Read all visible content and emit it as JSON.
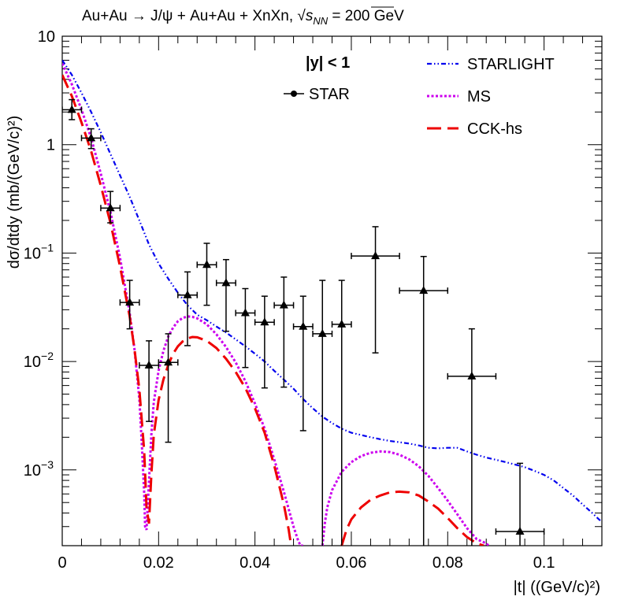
{
  "chart_data": {
    "type": "scatter",
    "title": "Au+Au → J/ψ + Au+Au + XnXn, √s_NN = 200 GeV",
    "title_main": "Au+Au → J/ψ + Au+Au + XnXn, ",
    "title_sqrt": "√",
    "title_s": "s",
    "title_sub": "NN",
    "title_tail": " = 200 GeV",
    "rapidity_label": "|y| < 1",
    "xlabel": "|t| ((GeV/c)²)",
    "ylabel": "dσ/dtdy (mb/(GeV/c)²)",
    "xlim": [
      0,
      0.112
    ],
    "ylim": [
      0.0002,
      10
    ],
    "yscale": "log",
    "x_ticks": [
      {
        "value": 0,
        "label": "0"
      },
      {
        "value": 0.02,
        "label": "0.02"
      },
      {
        "value": 0.04,
        "label": "0.04"
      },
      {
        "value": 0.06,
        "label": "0.06"
      },
      {
        "value": 0.08,
        "label": "0.08"
      },
      {
        "value": 0.1,
        "label": "0.1"
      }
    ],
    "y_ticks": [
      {
        "value": 10,
        "base": "10",
        "exp": ""
      },
      {
        "value": 1,
        "base": "1",
        "exp": ""
      },
      {
        "value": 0.1,
        "base": "10",
        "exp": "−1"
      },
      {
        "value": 0.01,
        "base": "10",
        "exp": "−2"
      },
      {
        "value": 0.001,
        "base": "10",
        "exp": "−3"
      }
    ],
    "legend": [
      {
        "key": "star",
        "label": "STAR"
      },
      {
        "key": "starlight",
        "label": "STARLIGHT"
      },
      {
        "key": "ms",
        "label": "MS"
      },
      {
        "key": "cck",
        "label": "CCK-hs"
      }
    ],
    "colors": {
      "starlight": "#0000ee",
      "ms": "#cc00ee",
      "cck": "#ee0000",
      "star": "#000000"
    },
    "star": [
      {
        "x": 0.002,
        "y": 2.1,
        "xerr": 0.002,
        "ylo": 1.7,
        "yhi": 2.6
      },
      {
        "x": 0.006,
        "y": 1.15,
        "xerr": 0.002,
        "ylo": 0.92,
        "yhi": 1.4
      },
      {
        "x": 0.01,
        "y": 0.26,
        "xerr": 0.002,
        "ylo": 0.19,
        "yhi": 0.37
      },
      {
        "x": 0.014,
        "y": 0.035,
        "xerr": 0.002,
        "ylo": 0.02,
        "yhi": 0.056
      },
      {
        "x": 0.018,
        "y": 0.0092,
        "xerr": 0.002,
        "ylo": 0.0028,
        "yhi": 0.0155
      },
      {
        "x": 0.022,
        "y": 0.0098,
        "xerr": 0.002,
        "ylo": 0.0018,
        "yhi": 0.018
      },
      {
        "x": 0.026,
        "y": 0.041,
        "xerr": 0.002,
        "ylo": 0.014,
        "yhi": 0.067
      },
      {
        "x": 0.03,
        "y": 0.078,
        "xerr": 0.002,
        "ylo": 0.033,
        "yhi": 0.123
      },
      {
        "x": 0.034,
        "y": 0.053,
        "xerr": 0.002,
        "ylo": 0.019,
        "yhi": 0.087
      },
      {
        "x": 0.038,
        "y": 0.028,
        "xerr": 0.002,
        "ylo": 0.0088,
        "yhi": 0.047
      },
      {
        "x": 0.042,
        "y": 0.023,
        "xerr": 0.002,
        "ylo": 0.0057,
        "yhi": 0.04
      },
      {
        "x": 0.046,
        "y": 0.033,
        "xerr": 0.002,
        "ylo": 0.0058,
        "yhi": 0.06
      },
      {
        "x": 0.05,
        "y": 0.021,
        "xerr": 0.002,
        "ylo": 0.0023,
        "yhi": 0.04
      },
      {
        "x": 0.054,
        "y": 0.018,
        "xerr": 0.002,
        "ylo": 0.0002,
        "yhi": 0.056
      },
      {
        "x": 0.058,
        "y": 0.022,
        "xerr": 0.002,
        "ylo": 0.0002,
        "yhi": 0.056
      },
      {
        "x": 0.065,
        "y": 0.094,
        "xerr": 0.005,
        "ylo": 0.012,
        "yhi": 0.175
      },
      {
        "x": 0.075,
        "y": 0.045,
        "xerr": 0.005,
        "ylo": 0.0002,
        "yhi": 0.093
      },
      {
        "x": 0.085,
        "y": 0.0073,
        "xerr": 0.005,
        "ylo": 0.0002,
        "yhi": 0.02
      },
      {
        "x": 0.095,
        "y": 0.00027,
        "xerr": 0.005,
        "ylo": 0.0002,
        "yhi": 0.00115
      }
    ],
    "starlight": {
      "x": [
        0,
        0.002,
        0.004,
        0.006,
        0.008,
        0.01,
        0.012,
        0.014,
        0.016,
        0.018,
        0.02,
        0.022,
        0.024,
        0.026,
        0.028,
        0.03,
        0.032,
        0.034,
        0.036,
        0.038,
        0.04,
        0.042,
        0.044,
        0.046,
        0.048,
        0.05,
        0.052,
        0.054,
        0.056,
        0.058,
        0.06,
        0.062,
        0.064,
        0.066,
        0.068,
        0.07,
        0.072,
        0.074,
        0.076,
        0.078,
        0.08,
        0.082,
        0.084,
        0.086,
        0.088,
        0.09,
        0.092,
        0.094,
        0.096,
        0.098,
        0.1,
        0.102,
        0.104,
        0.106,
        0.108,
        0.11,
        0.112
      ],
      "y": [
        6.0,
        4.4,
        3.0,
        2.0,
        1.3,
        0.82,
        0.52,
        0.33,
        0.2,
        0.12,
        0.08,
        0.058,
        0.043,
        0.033,
        0.027,
        0.024,
        0.021,
        0.0185,
        0.016,
        0.0138,
        0.0118,
        0.01,
        0.0082,
        0.0068,
        0.0056,
        0.0045,
        0.0037,
        0.0031,
        0.0027,
        0.0024,
        0.0022,
        0.0021,
        0.002,
        0.00192,
        0.00185,
        0.0018,
        0.00175,
        0.00168,
        0.0016,
        0.00158,
        0.0016,
        0.0016,
        0.00148,
        0.00138,
        0.0013,
        0.00124,
        0.00118,
        0.00112,
        0.00106,
        0.00098,
        0.0009,
        0.0008,
        0.00068,
        0.00058,
        0.00048,
        0.0004,
        0.00033
      ]
    },
    "ms": {
      "x": [
        0,
        0.002,
        0.004,
        0.006,
        0.008,
        0.01,
        0.012,
        0.014,
        0.015,
        0.016,
        0.0165,
        0.017,
        0.0172,
        0.0175,
        0.018,
        0.0185,
        0.019,
        0.02,
        0.021,
        0.022,
        0.023,
        0.024,
        0.025,
        0.026,
        0.027,
        0.028,
        0.03,
        0.032,
        0.034,
        0.036,
        0.038,
        0.04,
        0.042,
        0.044,
        0.046,
        0.048,
        0.049,
        0.0495,
        0.05,
        null,
        0.054,
        0.0545,
        0.055,
        0.056,
        0.058,
        0.06,
        0.062,
        0.064,
        0.066,
        0.068,
        0.07,
        0.072,
        0.074,
        0.076,
        0.078,
        0.08,
        0.082,
        0.084,
        0.086,
        0.088,
        0.0885
      ],
      "y": [
        5.6,
        3.6,
        2.1,
        1.15,
        0.54,
        0.24,
        0.09,
        0.028,
        0.013,
        0.0045,
        0.0018,
        0.00062,
        0.0003,
        0.00028,
        0.00078,
        0.0021,
        0.0042,
        0.0082,
        0.0125,
        0.017,
        0.0205,
        0.0235,
        0.0252,
        0.026,
        0.0258,
        0.025,
        0.022,
        0.0178,
        0.0136,
        0.0098,
        0.0066,
        0.0041,
        0.0024,
        0.00125,
        0.00063,
        0.0003,
        0.00022,
        0.0002,
        0.0002,
        null,
        0.0002,
        0.00032,
        0.00045,
        0.00065,
        0.00096,
        0.00118,
        0.00134,
        0.00144,
        0.00148,
        0.00146,
        0.00138,
        0.00125,
        0.00108,
        0.00088,
        0.00068,
        0.00052,
        0.00039,
        0.00029,
        0.00023,
        0.00021,
        0.0002
      ]
    },
    "cck": {
      "x": [
        0,
        0.002,
        0.004,
        0.006,
        0.008,
        0.01,
        0.012,
        0.014,
        0.015,
        0.016,
        0.017,
        0.0175,
        0.018,
        0.0185,
        0.019,
        0.02,
        0.021,
        0.022,
        0.023,
        0.024,
        0.025,
        0.026,
        0.027,
        0.028,
        0.03,
        0.032,
        0.034,
        0.036,
        0.038,
        0.04,
        0.042,
        0.044,
        0.046,
        0.047,
        0.0475,
        null,
        0.058,
        0.059,
        0.06,
        0.062,
        0.064,
        0.066,
        0.068,
        0.07,
        0.072,
        0.074,
        0.076,
        0.078,
        0.08,
        0.082,
        0.084,
        0.086,
        0.0875
      ],
      "y": [
        4.4,
        2.8,
        1.6,
        0.87,
        0.42,
        0.19,
        0.075,
        0.026,
        0.013,
        0.0055,
        0.0015,
        0.00045,
        0.00032,
        0.0009,
        0.0021,
        0.0044,
        0.0068,
        0.0093,
        0.0118,
        0.0138,
        0.0153,
        0.0163,
        0.0168,
        0.0167,
        0.0155,
        0.0133,
        0.0106,
        0.008,
        0.0057,
        0.0037,
        0.0022,
        0.0011,
        0.00048,
        0.00028,
        0.0002,
        null,
        0.0002,
        0.00028,
        0.00035,
        0.00045,
        0.00053,
        0.00058,
        0.00062,
        0.00063,
        0.00062,
        0.00058,
        0.00051,
        0.00044,
        0.00036,
        0.00029,
        0.00024,
        0.00021,
        0.0002
      ]
    }
  }
}
